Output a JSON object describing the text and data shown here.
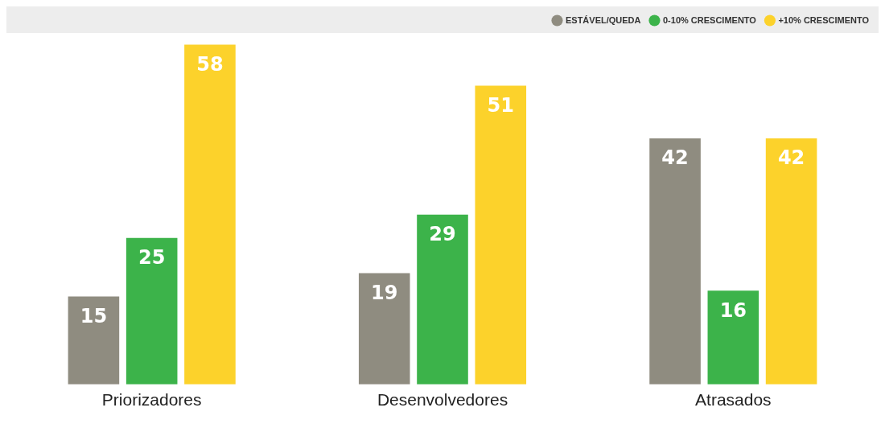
{
  "chart_data": {
    "type": "bar",
    "categories": [
      "Priorizadores",
      "Desenvolvedores",
      "Atrasados"
    ],
    "series": [
      {
        "name": "ESTÁVEL/QUEDA",
        "color": "#8f8c80",
        "values": [
          15,
          19,
          42
        ]
      },
      {
        "name": "0-10% CRESCIMENTO",
        "color": "#3cb34a",
        "values": [
          25,
          29,
          16
        ]
      },
      {
        "name": "+10% CRESCIMENTO",
        "color": "#fcd22b",
        "values": [
          58,
          51,
          42
        ]
      }
    ],
    "data_labels": true,
    "legend": "top right",
    "grid": false,
    "tick_labels": "x"
  }
}
